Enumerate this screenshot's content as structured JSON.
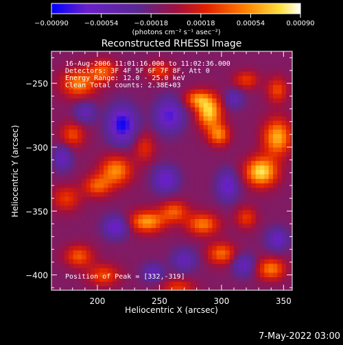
{
  "chart_data": {
    "type": "heatmap",
    "title": "Reconstructed RHESSI Image",
    "xlabel": "Heliocentric X (arcsec)",
    "ylabel": "Heliocentric Y (arcsec)",
    "xlim": [
      163,
      357
    ],
    "ylim": [
      -412,
      -225
    ],
    "x_ticks": [
      {
        "value": 200,
        "label": "200"
      },
      {
        "value": 250,
        "label": "250"
      },
      {
        "value": 300,
        "label": "300"
      },
      {
        "value": 350,
        "label": "350"
      }
    ],
    "y_ticks": [
      {
        "value": -250,
        "label": "−250"
      },
      {
        "value": -300,
        "label": "−300"
      },
      {
        "value": -350,
        "label": "−350"
      },
      {
        "value": -400,
        "label": "−400"
      }
    ],
    "colorbar": {
      "range": [
        -0.0009,
        0.0009
      ],
      "ticks": [
        {
          "value": -0.0009,
          "label": "−0.00090"
        },
        {
          "value": -0.00054,
          "label": "−0.00054"
        },
        {
          "value": -0.00018,
          "label": "−0.00018"
        },
        {
          "value": 0.00018,
          "label": "0.00018"
        },
        {
          "value": 0.00054,
          "label": "0.00054"
        },
        {
          "value": 0.0009,
          "label": "0.00090"
        }
      ],
      "units": "(photons cm⁻² s⁻¹ asec⁻²)",
      "colors": [
        "#0000ff",
        "#6a20c8",
        "#5a2890",
        "#a01040",
        "#e02000",
        "#ff8000",
        "#ffe040",
        "#ffffff"
      ]
    },
    "annotations": [
      "16-Aug-2006 11:01:16.000 to 11:02:36.000",
      "Detectors: 3F 4F 5F 6F 7F 8F, Att 0",
      "Energy Range: 12.0 - 25.0 keV",
      "Clean    Total counts: 2.38E+03"
    ],
    "peak_label": "Position of Peak = [332,-319]",
    "peak": {
      "x": 332,
      "y": -319,
      "value": 0.0009
    },
    "blobs": [
      {
        "x": 332,
        "y": -319,
        "value": 0.0009,
        "sx": 9,
        "sy": 8
      },
      {
        "x": 345,
        "y": -292,
        "value": 0.00075,
        "sx": 8,
        "sy": 10
      },
      {
        "x": 290,
        "y": -272,
        "value": 0.00085,
        "sx": 7,
        "sy": 9
      },
      {
        "x": 298,
        "y": -290,
        "value": 0.0006,
        "sx": 6,
        "sy": 6
      },
      {
        "x": 280,
        "y": -262,
        "value": 0.00055,
        "sx": 7,
        "sy": 5
      },
      {
        "x": 215,
        "y": -318,
        "value": 0.00065,
        "sx": 9,
        "sy": 8
      },
      {
        "x": 200,
        "y": -330,
        "value": 0.0005,
        "sx": 8,
        "sy": 6
      },
      {
        "x": 185,
        "y": -250,
        "value": 0.0006,
        "sx": 10,
        "sy": 8
      },
      {
        "x": 205,
        "y": -240,
        "value": 0.0005,
        "sx": 8,
        "sy": 6
      },
      {
        "x": 180,
        "y": -290,
        "value": 0.00045,
        "sx": 7,
        "sy": 7
      },
      {
        "x": 240,
        "y": -358,
        "value": 0.0007,
        "sx": 10,
        "sy": 6
      },
      {
        "x": 262,
        "y": -350,
        "value": 0.0005,
        "sx": 8,
        "sy": 6
      },
      {
        "x": 285,
        "y": -360,
        "value": 0.0006,
        "sx": 9,
        "sy": 6
      },
      {
        "x": 175,
        "y": -340,
        "value": 0.0004,
        "sx": 8,
        "sy": 7
      },
      {
        "x": 185,
        "y": -385,
        "value": 0.0005,
        "sx": 8,
        "sy": 6
      },
      {
        "x": 205,
        "y": -400,
        "value": 0.00045,
        "sx": 9,
        "sy": 6
      },
      {
        "x": 300,
        "y": -383,
        "value": 0.00055,
        "sx": 8,
        "sy": 6
      },
      {
        "x": 340,
        "y": -395,
        "value": 0.0006,
        "sx": 8,
        "sy": 6
      },
      {
        "x": 250,
        "y": -240,
        "value": 0.0004,
        "sx": 8,
        "sy": 5
      },
      {
        "x": 320,
        "y": -247,
        "value": 0.0004,
        "sx": 7,
        "sy": 5
      },
      {
        "x": 238,
        "y": -300,
        "value": 0.00035,
        "sx": 6,
        "sy": 8
      },
      {
        "x": 345,
        "y": -255,
        "value": 0.00045,
        "sx": 6,
        "sy": 7
      },
      {
        "x": 320,
        "y": -355,
        "value": 0.0004,
        "sx": 6,
        "sy": 6
      },
      {
        "x": 265,
        "y": -410,
        "value": 0.0004,
        "sx": 9,
        "sy": 5
      },
      {
        "x": 220,
        "y": -282,
        "value": -0.00075,
        "sx": 8,
        "sy": 10
      },
      {
        "x": 258,
        "y": -275,
        "value": -0.0006,
        "sx": 8,
        "sy": 9
      },
      {
        "x": 255,
        "y": -325,
        "value": -0.00055,
        "sx": 7,
        "sy": 7
      },
      {
        "x": 305,
        "y": -330,
        "value": -0.00055,
        "sx": 6,
        "sy": 8
      },
      {
        "x": 215,
        "y": -362,
        "value": -0.00055,
        "sx": 7,
        "sy": 6
      },
      {
        "x": 190,
        "y": -272,
        "value": -0.0004,
        "sx": 6,
        "sy": 6
      },
      {
        "x": 345,
        "y": -372,
        "value": -0.0005,
        "sx": 6,
        "sy": 6
      },
      {
        "x": 318,
        "y": -392,
        "value": -0.00045,
        "sx": 6,
        "sy": 6
      },
      {
        "x": 270,
        "y": -388,
        "value": -0.0004,
        "sx": 7,
        "sy": 6
      },
      {
        "x": 310,
        "y": -262,
        "value": -0.0004,
        "sx": 5,
        "sy": 5
      },
      {
        "x": 172,
        "y": -308,
        "value": -0.00045,
        "sx": 5,
        "sy": 7
      },
      {
        "x": 245,
        "y": -398,
        "value": -0.0004,
        "sx": 6,
        "sy": 5
      }
    ]
  },
  "footer": {
    "timestamp": "7-May-2022 03:00"
  }
}
